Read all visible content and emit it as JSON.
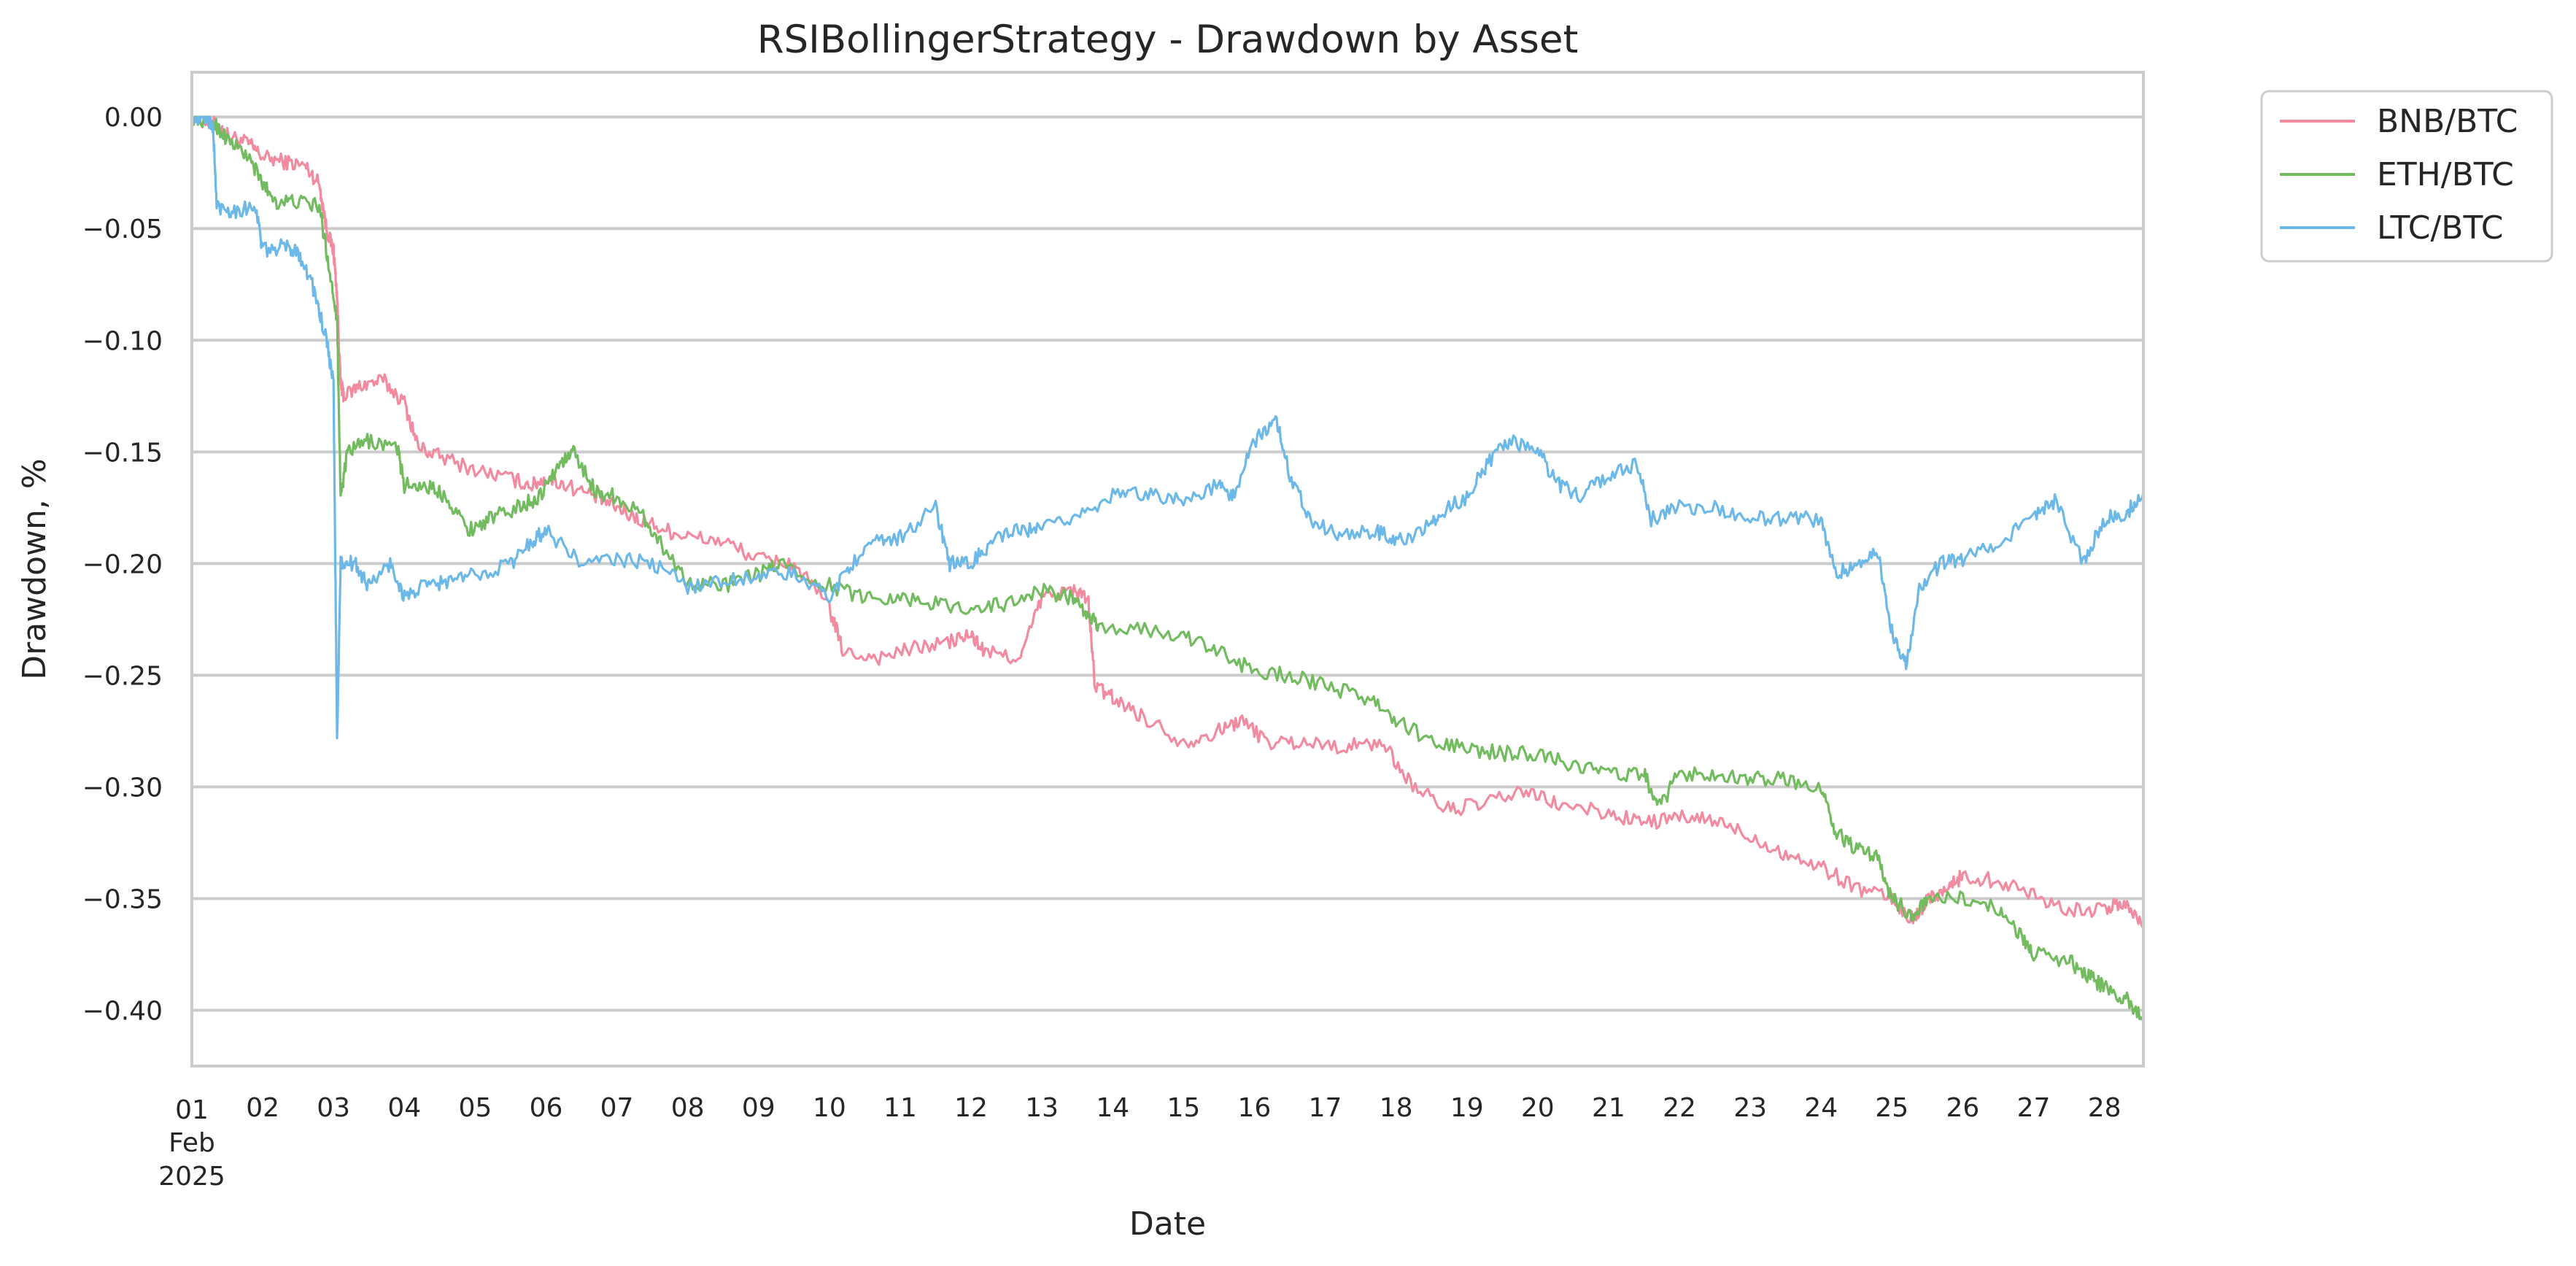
{
  "chart_data": {
    "type": "line",
    "title": "RSIBollingerStrategy - Drawdown by Asset",
    "xlabel": "Date",
    "ylabel": "Drawdown, %",
    "x_unit": "day of February 2025",
    "xlim": [
      1,
      28.55
    ],
    "ylim": [
      -0.425,
      0.02
    ],
    "grid": "horizontal",
    "legend_position": "outside top-right",
    "y_ticks": [
      0.0,
      -0.05,
      -0.1,
      -0.15,
      -0.2,
      -0.25,
      -0.3,
      -0.35,
      -0.4
    ],
    "y_tick_labels": [
      "0.00",
      "−0.05",
      "−0.10",
      "−0.15",
      "−0.20",
      "−0.25",
      "−0.30",
      "−0.35",
      "−0.40"
    ],
    "x_ticks": [
      1,
      2,
      3,
      4,
      5,
      6,
      7,
      8,
      9,
      10,
      11,
      12,
      13,
      14,
      15,
      16,
      17,
      18,
      19,
      20,
      21,
      22,
      23,
      24,
      25,
      26,
      27,
      28
    ],
    "x_tick_labels": [
      "01",
      "02",
      "03",
      "04",
      "05",
      "06",
      "07",
      "08",
      "09",
      "10",
      "11",
      "12",
      "13",
      "14",
      "15",
      "16",
      "17",
      "18",
      "19",
      "20",
      "21",
      "22",
      "23",
      "24",
      "25",
      "26",
      "27",
      "28"
    ],
    "x_tick_first_extra": [
      "Feb",
      "2025"
    ],
    "series": [
      {
        "name": "BNB/BTC",
        "color": "#f28aa0",
        "points": [
          [
            1,
            0
          ],
          [
            1.3,
            -0.003
          ],
          [
            1.5,
            -0.008
          ],
          [
            1.8,
            -0.012
          ],
          [
            2,
            -0.018
          ],
          [
            2.3,
            -0.02
          ],
          [
            2.6,
            -0.022
          ],
          [
            2.8,
            -0.03
          ],
          [
            2.9,
            -0.05
          ],
          [
            3.0,
            -0.06
          ],
          [
            3.05,
            -0.08
          ],
          [
            3.1,
            -0.12
          ],
          [
            3.15,
            -0.125
          ],
          [
            3.4,
            -0.12
          ],
          [
            3.7,
            -0.118
          ],
          [
            4.0,
            -0.128
          ],
          [
            4.2,
            -0.148
          ],
          [
            4.5,
            -0.152
          ],
          [
            5.0,
            -0.158
          ],
          [
            5.5,
            -0.162
          ],
          [
            5.8,
            -0.165
          ],
          [
            6.0,
            -0.162
          ],
          [
            6.3,
            -0.165
          ],
          [
            6.7,
            -0.17
          ],
          [
            7.0,
            -0.175
          ],
          [
            7.3,
            -0.18
          ],
          [
            7.7,
            -0.185
          ],
          [
            8.0,
            -0.188
          ],
          [
            8.5,
            -0.19
          ],
          [
            9.0,
            -0.198
          ],
          [
            9.5,
            -0.2
          ],
          [
            10.0,
            -0.22
          ],
          [
            10.2,
            -0.24
          ],
          [
            10.7,
            -0.242
          ],
          [
            11.2,
            -0.238
          ],
          [
            11.7,
            -0.235
          ],
          [
            12.0,
            -0.232
          ],
          [
            12.2,
            -0.24
          ],
          [
            12.7,
            -0.242
          ],
          [
            13.0,
            -0.215
          ],
          [
            13.4,
            -0.212
          ],
          [
            13.65,
            -0.215
          ],
          [
            13.75,
            -0.255
          ],
          [
            14.0,
            -0.26
          ],
          [
            14.4,
            -0.268
          ],
          [
            15.0,
            -0.28
          ],
          [
            15.5,
            -0.275
          ],
          [
            15.8,
            -0.27
          ],
          [
            16.2,
            -0.28
          ],
          [
            16.7,
            -0.28
          ],
          [
            17.3,
            -0.282
          ],
          [
            17.8,
            -0.28
          ],
          [
            18.2,
            -0.298
          ],
          [
            18.7,
            -0.31
          ],
          [
            19.2,
            -0.308
          ],
          [
            19.8,
            -0.302
          ],
          [
            20.3,
            -0.308
          ],
          [
            21.0,
            -0.312
          ],
          [
            21.5,
            -0.316
          ],
          [
            22.0,
            -0.314
          ],
          [
            22.5,
            -0.315
          ],
          [
            23.0,
            -0.322
          ],
          [
            23.5,
            -0.33
          ],
          [
            24.0,
            -0.336
          ],
          [
            24.5,
            -0.345
          ],
          [
            25.0,
            -0.35
          ],
          [
            25.3,
            -0.36
          ],
          [
            25.5,
            -0.35
          ],
          [
            25.8,
            -0.345
          ],
          [
            26.0,
            -0.34
          ],
          [
            26.5,
            -0.342
          ],
          [
            27.0,
            -0.348
          ],
          [
            27.5,
            -0.355
          ],
          [
            28.0,
            -0.355
          ],
          [
            28.3,
            -0.352
          ],
          [
            28.55,
            -0.362
          ]
        ]
      },
      {
        "name": "ETH/BTC",
        "color": "#72bb5f",
        "points": [
          [
            1,
            0
          ],
          [
            1.3,
            -0.002
          ],
          [
            1.5,
            -0.01
          ],
          [
            1.8,
            -0.018
          ],
          [
            2.0,
            -0.03
          ],
          [
            2.2,
            -0.038
          ],
          [
            2.5,
            -0.038
          ],
          [
            2.8,
            -0.04
          ],
          [
            2.95,
            -0.07
          ],
          [
            3.05,
            -0.09
          ],
          [
            3.1,
            -0.17
          ],
          [
            3.2,
            -0.15
          ],
          [
            3.5,
            -0.145
          ],
          [
            3.9,
            -0.148
          ],
          [
            4.0,
            -0.165
          ],
          [
            4.3,
            -0.165
          ],
          [
            4.6,
            -0.17
          ],
          [
            4.9,
            -0.185
          ],
          [
            5.2,
            -0.18
          ],
          [
            5.6,
            -0.175
          ],
          [
            5.9,
            -0.17
          ],
          [
            6.2,
            -0.155
          ],
          [
            6.4,
            -0.15
          ],
          [
            6.7,
            -0.168
          ],
          [
            7.0,
            -0.17
          ],
          [
            7.4,
            -0.18
          ],
          [
            7.7,
            -0.195
          ],
          [
            8.0,
            -0.208
          ],
          [
            8.5,
            -0.21
          ],
          [
            9.0,
            -0.205
          ],
          [
            9.3,
            -0.2
          ],
          [
            10.0,
            -0.21
          ],
          [
            10.5,
            -0.215
          ],
          [
            11.0,
            -0.215
          ],
          [
            11.5,
            -0.218
          ],
          [
            12.0,
            -0.22
          ],
          [
            12.5,
            -0.218
          ],
          [
            13.0,
            -0.212
          ],
          [
            13.4,
            -0.215
          ],
          [
            13.6,
            -0.222
          ],
          [
            13.8,
            -0.228
          ],
          [
            14.5,
            -0.23
          ],
          [
            15.0,
            -0.232
          ],
          [
            15.5,
            -0.24
          ],
          [
            16.0,
            -0.248
          ],
          [
            16.5,
            -0.25
          ],
          [
            17.0,
            -0.255
          ],
          [
            17.6,
            -0.26
          ],
          [
            18.0,
            -0.27
          ],
          [
            18.5,
            -0.28
          ],
          [
            19.0,
            -0.283
          ],
          [
            19.5,
            -0.285
          ],
          [
            20.0,
            -0.285
          ],
          [
            20.5,
            -0.29
          ],
          [
            21.0,
            -0.294
          ],
          [
            21.5,
            -0.294
          ],
          [
            21.7,
            -0.31
          ],
          [
            22.0,
            -0.294
          ],
          [
            22.5,
            -0.294
          ],
          [
            23.0,
            -0.296
          ],
          [
            23.5,
            -0.297
          ],
          [
            24.0,
            -0.3
          ],
          [
            24.2,
            -0.32
          ],
          [
            24.5,
            -0.328
          ],
          [
            24.8,
            -0.332
          ],
          [
            25.0,
            -0.35
          ],
          [
            25.3,
            -0.358
          ],
          [
            25.5,
            -0.35
          ],
          [
            26.0,
            -0.35
          ],
          [
            26.5,
            -0.355
          ],
          [
            26.8,
            -0.365
          ],
          [
            27.0,
            -0.375
          ],
          [
            27.5,
            -0.378
          ],
          [
            27.8,
            -0.385
          ],
          [
            28.0,
            -0.39
          ],
          [
            28.3,
            -0.395
          ],
          [
            28.55,
            -0.403
          ]
        ]
      },
      {
        "name": "LTC/BTC",
        "color": "#6cb8e8",
        "points": [
          [
            1,
            0
          ],
          [
            1.2,
            0
          ],
          [
            1.3,
            -0.005
          ],
          [
            1.35,
            -0.04
          ],
          [
            1.6,
            -0.042
          ],
          [
            1.9,
            -0.04
          ],
          [
            2.0,
            -0.06
          ],
          [
            2.3,
            -0.058
          ],
          [
            2.5,
            -0.06
          ],
          [
            2.7,
            -0.075
          ],
          [
            2.9,
            -0.1
          ],
          [
            3.0,
            -0.12
          ],
          [
            3.05,
            -0.28
          ],
          [
            3.1,
            -0.2
          ],
          [
            3.3,
            -0.2
          ],
          [
            3.5,
            -0.21
          ],
          [
            3.8,
            -0.2
          ],
          [
            4.0,
            -0.215
          ],
          [
            4.3,
            -0.21
          ],
          [
            4.6,
            -0.208
          ],
          [
            5.0,
            -0.205
          ],
          [
            5.5,
            -0.2
          ],
          [
            5.8,
            -0.19
          ],
          [
            6.0,
            -0.185
          ],
          [
            6.5,
            -0.2
          ],
          [
            7.0,
            -0.198
          ],
          [
            7.5,
            -0.2
          ],
          [
            8.0,
            -0.21
          ],
          [
            8.5,
            -0.208
          ],
          [
            9.0,
            -0.205
          ],
          [
            9.5,
            -0.205
          ],
          [
            10.0,
            -0.215
          ],
          [
            10.3,
            -0.2
          ],
          [
            10.7,
            -0.19
          ],
          [
            11.0,
            -0.188
          ],
          [
            11.5,
            -0.175
          ],
          [
            11.7,
            -0.2
          ],
          [
            12.0,
            -0.2
          ],
          [
            12.3,
            -0.19
          ],
          [
            12.7,
            -0.185
          ],
          [
            13.0,
            -0.185
          ],
          [
            13.5,
            -0.178
          ],
          [
            14.0,
            -0.17
          ],
          [
            14.5,
            -0.168
          ],
          [
            15.0,
            -0.172
          ],
          [
            15.5,
            -0.165
          ],
          [
            15.7,
            -0.17
          ],
          [
            16.0,
            -0.145
          ],
          [
            16.3,
            -0.135
          ],
          [
            16.5,
            -0.16
          ],
          [
            16.8,
            -0.18
          ],
          [
            17.2,
            -0.188
          ],
          [
            17.7,
            -0.185
          ],
          [
            18.0,
            -0.19
          ],
          [
            18.4,
            -0.185
          ],
          [
            18.6,
            -0.178
          ],
          [
            19.0,
            -0.17
          ],
          [
            19.3,
            -0.155
          ],
          [
            19.6,
            -0.145
          ],
          [
            20.0,
            -0.15
          ],
          [
            20.3,
            -0.165
          ],
          [
            20.6,
            -0.17
          ],
          [
            21.0,
            -0.16
          ],
          [
            21.4,
            -0.155
          ],
          [
            21.6,
            -0.18
          ],
          [
            22.0,
            -0.175
          ],
          [
            22.5,
            -0.175
          ],
          [
            23.0,
            -0.18
          ],
          [
            23.5,
            -0.18
          ],
          [
            24.0,
            -0.18
          ],
          [
            24.2,
            -0.205
          ],
          [
            24.5,
            -0.2
          ],
          [
            24.8,
            -0.195
          ],
          [
            25.0,
            -0.23
          ],
          [
            25.2,
            -0.245
          ],
          [
            25.4,
            -0.21
          ],
          [
            25.7,
            -0.2
          ],
          [
            26.0,
            -0.198
          ],
          [
            26.5,
            -0.19
          ],
          [
            27.0,
            -0.18
          ],
          [
            27.3,
            -0.172
          ],
          [
            27.7,
            -0.2
          ],
          [
            28.0,
            -0.18
          ],
          [
            28.3,
            -0.178
          ],
          [
            28.55,
            -0.168
          ]
        ]
      }
    ]
  }
}
